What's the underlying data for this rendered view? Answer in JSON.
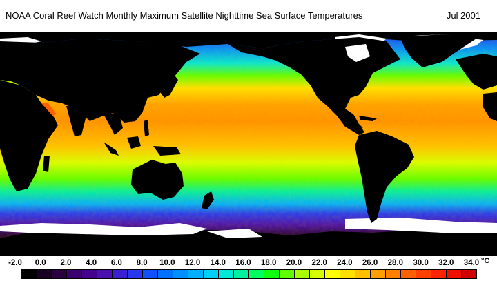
{
  "map": {
    "title": "NOAA Coral Reef Watch Monthly Maximum Satellite Nighttime Sea Surface Temperatures",
    "date": "Jul 2001",
    "subject": "global sea surface temperature map",
    "projection": "equirectangular, Pacific-centred",
    "land_color": "#000000",
    "ice_color": "#ffffff"
  },
  "legend": {
    "unit": "°C",
    "ticks": [
      "-2.0",
      "0.0",
      "2.0",
      "4.0",
      "6.0",
      "8.0",
      "10.0",
      "12.0",
      "14.0",
      "16.0",
      "18.0",
      "20.0",
      "22.0",
      "24.0",
      "26.0",
      "28.0",
      "30.0",
      "32.0",
      "34.0"
    ],
    "colors": [
      "#000000",
      "#1a0020",
      "#2a0040",
      "#3a006e",
      "#46008e",
      "#4a10b0",
      "#3a20d0",
      "#2838f0",
      "#1050ff",
      "#0070ff",
      "#0090ff",
      "#00b0ff",
      "#00d0f8",
      "#00e8d8",
      "#00f0a0",
      "#00ff60",
      "#10ff10",
      "#60ff00",
      "#a8ff00",
      "#d8ff00",
      "#ffff00",
      "#ffe000",
      "#ffc000",
      "#ffa000",
      "#ff8000",
      "#ff6000",
      "#ff4000",
      "#ff2400",
      "#f01000",
      "#d00000"
    ]
  }
}
